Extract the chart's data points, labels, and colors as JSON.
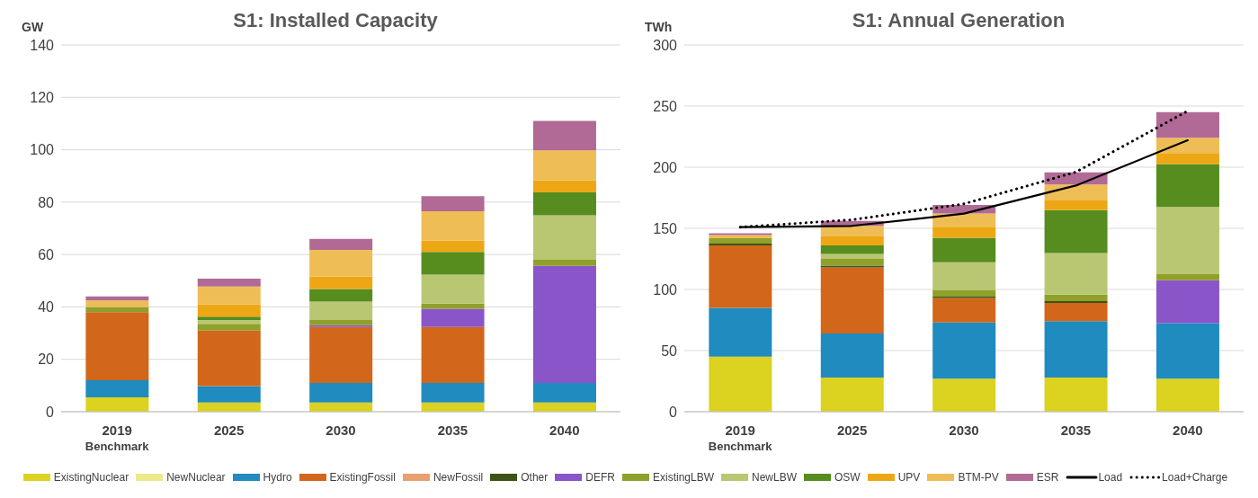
{
  "chart_data": [
    {
      "type": "bar",
      "title": "S1: Installed Capacity",
      "ylabel": "GW",
      "stacked": true,
      "grid": "y",
      "legend": "bottom",
      "marker": "none",
      "categories": [
        "2019$_{Benchmark}$",
        "2025",
        "2030",
        "2035",
        "2040"
      ],
      "ylim": [
        0,
        140
      ],
      "yticks": [
        0,
        20,
        40,
        60,
        80,
        100,
        120,
        140
      ],
      "series": [
        {
          "name": "ExistingNuclear",
          "color": "#dcd220",
          "values": [
            5.5,
            3.5,
            3.5,
            3.5,
            3.5
          ]
        },
        {
          "name": "NewNuclear",
          "color": "#ece98a",
          "values": [
            0,
            0,
            0,
            0,
            0
          ]
        },
        {
          "name": "Hydro",
          "color": "#1f8bbf",
          "values": [
            6.5,
            6.3,
            7.5,
            7.5,
            7.5
          ]
        },
        {
          "name": "ExistingFossil",
          "color": "#d2661a",
          "values": [
            26,
            21.2,
            21.3,
            21.3,
            0
          ]
        },
        {
          "name": "NewFossil",
          "color": "#e8a070",
          "values": [
            0,
            0,
            0,
            0,
            0
          ]
        },
        {
          "name": "Other",
          "color": "#3f5316",
          "values": [
            0,
            0,
            0,
            0,
            0
          ]
        },
        {
          "name": "DEFR",
          "color": "#8a55c8",
          "values": [
            0,
            0,
            0.7,
            7,
            44.7
          ]
        },
        {
          "name": "ExistingLBW",
          "color": "#8fa02b",
          "values": [
            2,
            2.5,
            2,
            2,
            2.3
          ]
        },
        {
          "name": "NewLBW",
          "color": "#b9c772",
          "values": [
            0,
            1.5,
            7,
            11,
            17
          ]
        },
        {
          "name": "OSW",
          "color": "#578c1e",
          "values": [
            0,
            1.3,
            4.8,
            8.7,
            8.7
          ]
        },
        {
          "name": "UPV",
          "color": "#eda714",
          "values": [
            0,
            4.7,
            4.8,
            4.4,
            4.6
          ]
        },
        {
          "name": "BTM-PV",
          "color": "#efbd55",
          "values": [
            2.5,
            6.8,
            10.2,
            11.1,
            11.5
          ]
        },
        {
          "name": "ESR",
          "color": "#b06a95",
          "values": [
            1.5,
            3,
            4.2,
            5.8,
            11.2
          ]
        }
      ]
    },
    {
      "type": "bar",
      "title": "S1: Annual Generation",
      "ylabel": "TWh",
      "stacked": true,
      "grid": "y",
      "legend": "bottom",
      "marker": "none",
      "categories": [
        "2019$_{Benchmark}$",
        "2025",
        "2030",
        "2035",
        "2040"
      ],
      "ylim": [
        0,
        300
      ],
      "yticks": [
        0,
        50,
        100,
        150,
        200,
        250,
        300
      ],
      "series": [
        {
          "color": "#dcd220",
          "values": [
            45,
            28,
            27,
            28,
            27
          ]
        },
        {
          "color": "#ece98a",
          "values": [
            0,
            0,
            0,
            0,
            0
          ]
        },
        {
          "color": "#1f8bbf",
          "values": [
            40,
            36,
            46,
            46,
            45.5
          ]
        },
        {
          "color": "#d2661a",
          "values": [
            51,
            54,
            20,
            15,
            0
          ]
        },
        {
          "color": "#e8a070",
          "values": [
            0,
            0,
            0,
            0,
            0
          ]
        },
        {
          "color": "#3f5316",
          "values": [
            1.5,
            1.5,
            1.2,
            1.5,
            0
          ]
        },
        {
          "color": "#8a55c8",
          "values": [
            0,
            0,
            0,
            0,
            35
          ]
        },
        {
          "color": "#8fa02b",
          "values": [
            4.5,
            5.5,
            5,
            5.3,
            5
          ]
        },
        {
          "color": "#b9c772",
          "values": [
            0,
            4,
            23,
            34,
            55
          ]
        },
        {
          "color": "#578c1e",
          "values": [
            0,
            7,
            20,
            35,
            35
          ]
        },
        {
          "color": "#eda714",
          "values": [
            0,
            8,
            9,
            8.5,
            9
          ]
        },
        {
          "color": "#efbd55",
          "values": [
            2.5,
            8,
            11,
            12.5,
            12.6
          ]
        },
        {
          "color": "#b06a95",
          "values": [
            1.5,
            4,
            7,
            10,
            21
          ]
        },
        {
          "name": "Load",
          "type": "line",
          "line_style": "solid",
          "color": "#000000",
          "values": [
            151,
            152,
            162,
            185,
            222
          ]
        },
        {
          "name": "Load+Charge",
          "type": "line",
          "line_style": "dotted",
          "color": "#000000",
          "values": [
            151,
            157,
            170,
            196,
            246
          ]
        }
      ]
    }
  ]
}
